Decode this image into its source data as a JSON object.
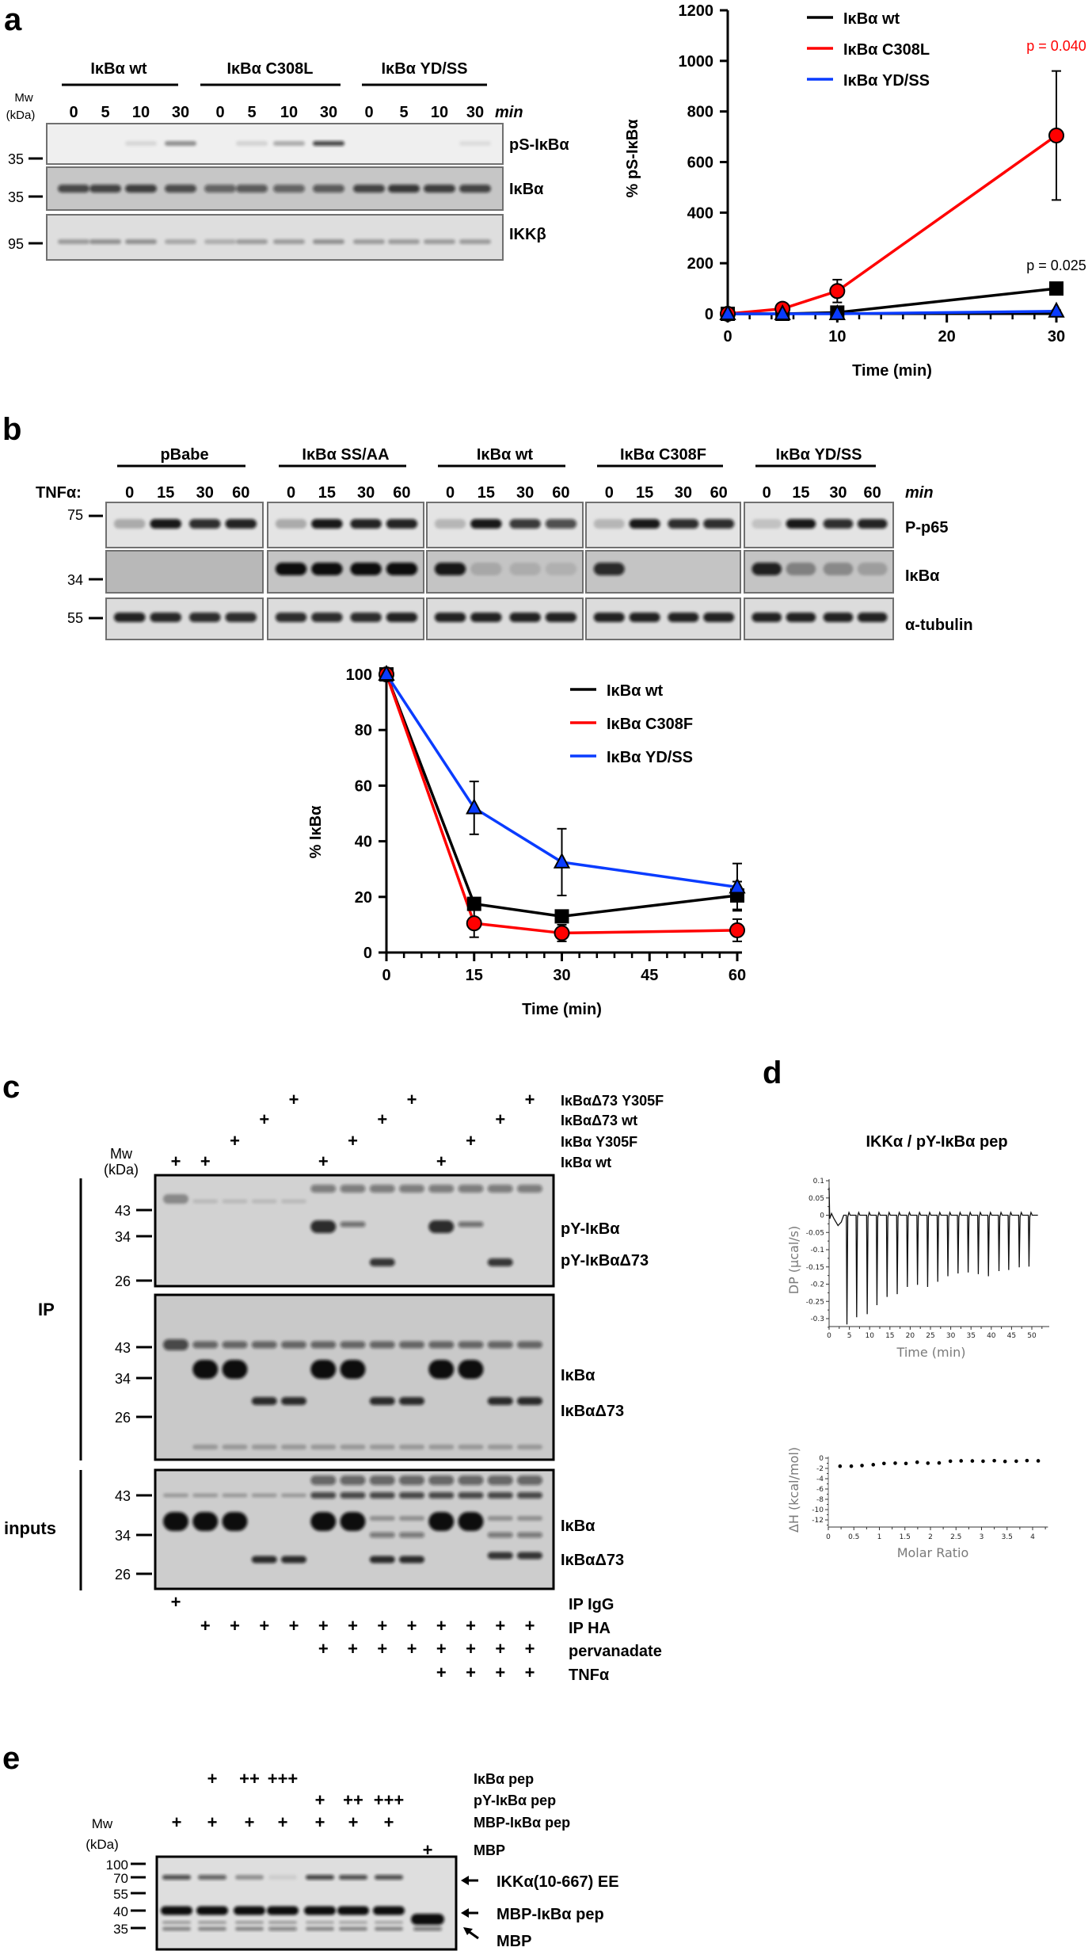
{
  "figure": {
    "panel_a": {
      "letter": "a",
      "groups": [
        "IκBα wt",
        "IκBα C308L",
        "IκBα YD/SS"
      ],
      "times": [
        "0",
        "5",
        "10",
        "30"
      ],
      "unit": "min",
      "mw_header": "Mw",
      "mw_unit": "(kDa)",
      "markers": [
        "35",
        "35",
        "95"
      ],
      "rows": [
        "pS-IκBα",
        "IκBα",
        "IKKβ"
      ]
    },
    "panel_b": {
      "letter": "b",
      "groups": [
        "pBabe",
        "IκBα SS/AA",
        "IκBα wt",
        "IκBα C308F",
        "IκBα YD/SS"
      ],
      "treatment": "TNFα:",
      "times": [
        "0",
        "15",
        "30",
        "60"
      ],
      "unit": "min",
      "markers": [
        "75",
        "34",
        "55"
      ],
      "rows": [
        "P-p65",
        "IκBα",
        "α-tubulin"
      ]
    },
    "panel_c": {
      "letter": "c",
      "mw_header": "Mw",
      "mw_unit": "(kDa)",
      "top_conditions": [
        {
          "label": "IκBαΔ73 Y305F",
          "marks": [
            "",
            "",
            "",
            "",
            "+",
            "",
            "",
            "",
            "+",
            "",
            "",
            "",
            "+"
          ]
        },
        {
          "label": "IκBαΔ73 wt",
          "marks": [
            "",
            "",
            "",
            "+",
            "",
            "",
            "",
            "+",
            "",
            "",
            "",
            "+",
            ""
          ]
        },
        {
          "label": "IκBα Y305F",
          "marks": [
            "",
            "",
            "+",
            "",
            "",
            "",
            "+",
            "",
            "",
            "",
            "+",
            "",
            ""
          ]
        },
        {
          "label": "IκBα wt",
          "marks": [
            "+",
            "+",
            "",
            "",
            "",
            "+",
            "",
            "",
            "",
            "+",
            "",
            "",
            ""
          ]
        }
      ],
      "blots": [
        {
          "markers": [
            "43",
            "34",
            "26"
          ],
          "labels": [
            "pY-IκBα",
            "pY-IκBαΔ73"
          ]
        },
        {
          "markers": [
            "43",
            "34",
            "26"
          ],
          "labels": [
            "IκBα",
            "IκBαΔ73"
          ]
        },
        {
          "markers": [
            "43",
            "34",
            "26"
          ],
          "labels": [
            "IκBα",
            "IκBαΔ73"
          ]
        }
      ],
      "brackets": [
        "IP",
        "inputs"
      ],
      "bottom_conditions": [
        {
          "label": "IP IgG",
          "marks": [
            "+",
            "",
            "",
            "",
            "",
            "",
            "",
            "",
            "",
            "",
            "",
            "",
            ""
          ]
        },
        {
          "label": "IP HA",
          "marks": [
            "",
            "+",
            "+",
            "+",
            "+",
            "+",
            "+",
            "+",
            "+",
            "+",
            "+",
            "+",
            "+"
          ]
        },
        {
          "label": "pervanadate",
          "marks": [
            "",
            "",
            "",
            "",
            "",
            "+",
            "+",
            "+",
            "+",
            "+",
            "+",
            "+",
            "+"
          ]
        },
        {
          "label": "TNFα",
          "marks": [
            "",
            "",
            "",
            "",
            "",
            "",
            "",
            "",
            "",
            "+",
            "+",
            "+",
            "+"
          ]
        }
      ]
    },
    "panel_d": {
      "letter": "d"
    },
    "panel_e": {
      "letter": "e",
      "mw_header": "Mw",
      "mw_unit": "(kDa)",
      "conditions": [
        {
          "label": "IκBα pep",
          "marks": [
            "",
            "+",
            "++",
            "+++",
            "",
            "",
            "",
            ""
          ]
        },
        {
          "label": "pY-IκBα pep",
          "marks": [
            "",
            "",
            "",
            "",
            "+",
            "++",
            "+++",
            ""
          ]
        },
        {
          "label": "MBP-IκBα pep",
          "marks": [
            "+",
            "+",
            "+",
            "+",
            "+",
            "+",
            "+",
            ""
          ]
        },
        {
          "label": "MBP",
          "marks": [
            "",
            "",
            "",
            "",
            "",
            "",
            "",
            "+"
          ]
        }
      ],
      "markers": [
        "100",
        "70",
        "55",
        "40",
        "35"
      ],
      "bands": [
        "IKKα(10-667) EE",
        "MBP-IκBα pep",
        "MBP"
      ]
    }
  },
  "chart_data": [
    {
      "id": "a",
      "type": "line",
      "xlabel": "Time (min)",
      "ylabel": "% pS-IκBα",
      "xlim": [
        0,
        30
      ],
      "ylim": [
        0,
        1200
      ],
      "xticks": [
        0,
        10,
        20,
        30
      ],
      "yticks": [
        0,
        200,
        400,
        600,
        800,
        1000,
        1200
      ],
      "legend": "top-center",
      "series": [
        {
          "name": "IκBα wt",
          "color": "#000000",
          "marker": "square",
          "x": [
            0,
            5,
            10,
            30
          ],
          "y": [
            0,
            0,
            5,
            100
          ],
          "err": [
            0,
            0,
            5,
            0
          ]
        },
        {
          "name": "IκBα C308L",
          "color": "#ff0000",
          "marker": "circle",
          "x": [
            0,
            5,
            10,
            30
          ],
          "y": [
            0,
            20,
            90,
            705
          ],
          "err": [
            0,
            0,
            45,
            255
          ]
        },
        {
          "name": "IκBα YD/SS",
          "color": "#0a3cff",
          "marker": "triangle",
          "x": [
            0,
            5,
            10,
            30
          ],
          "y": [
            0,
            0,
            0,
            10
          ],
          "err": [
            0,
            0,
            0,
            4
          ]
        }
      ],
      "annotations": [
        {
          "text": "p = 0.040",
          "x": 30,
          "y": 1040,
          "color": "#ff0000"
        },
        {
          "text": "p = 0.025",
          "x": 30,
          "y": 172,
          "color": "#000000"
        }
      ]
    },
    {
      "id": "b",
      "type": "line",
      "xlabel": "Time (min)",
      "ylabel": "% IκBα",
      "xlim": [
        0,
        60
      ],
      "ylim": [
        0,
        100
      ],
      "xticks": [
        0,
        15,
        30,
        45,
        60
      ],
      "yticks": [
        0,
        20,
        40,
        60,
        80,
        100
      ],
      "legend": "top-right",
      "series": [
        {
          "name": "IκBα wt",
          "color": "#000000",
          "marker": "square",
          "x": [
            0,
            15,
            30,
            60
          ],
          "y": [
            100,
            17.5,
            13,
            20.5
          ],
          "err": [
            0,
            2,
            2,
            5
          ]
        },
        {
          "name": "IκBα C308F",
          "color": "#ff0000",
          "marker": "circle",
          "x": [
            0,
            15,
            30,
            60
          ],
          "y": [
            100,
            10.5,
            7,
            8
          ],
          "err": [
            0,
            5,
            3,
            4
          ]
        },
        {
          "name": "IκBα YD/SS",
          "color": "#0a3cff",
          "marker": "triangle",
          "x": [
            0,
            15,
            30,
            60
          ],
          "y": [
            100,
            52,
            32.5,
            23.5
          ],
          "err": [
            0,
            9.5,
            12,
            8.5
          ]
        }
      ]
    },
    {
      "id": "d-top",
      "type": "line",
      "title": "IKKα / pY-IκBα pep",
      "xlabel": "Time (min)",
      "ylabel": "DP (µcal/s)",
      "xlim": [
        0,
        54.3
      ],
      "ylim": [
        -0.323,
        0.1
      ],
      "xticks": [
        0,
        5,
        10,
        15,
        20,
        25,
        30,
        35,
        40,
        45,
        50
      ],
      "yticks": [
        0.1,
        0.05,
        0,
        -0.05,
        -0.1,
        -0.15,
        -0.2,
        -0.25,
        -0.3
      ],
      "injections": {
        "time": [
          4.4,
          6.8,
          9.4,
          11.8,
          14.3,
          16.8,
          19.3,
          21.8,
          24.3,
          26.8,
          29.3,
          31.8,
          34.3,
          36.8,
          39.3,
          41.9,
          44.3,
          46.9,
          49.3
        ],
        "peak": [
          -0.317,
          -0.296,
          -0.287,
          -0.261,
          -0.237,
          -0.229,
          -0.208,
          -0.202,
          -0.208,
          -0.193,
          -0.177,
          -0.169,
          -0.166,
          -0.171,
          -0.177,
          -0.162,
          -0.159,
          -0.151,
          -0.149
        ]
      }
    },
    {
      "id": "d-bottom",
      "type": "scatter",
      "xlabel": "Molar Ratio",
      "ylabel": "ΔH (kcal/mol)",
      "xlim": [
        0,
        4.3
      ],
      "ylim": [
        -12.6,
        0.3
      ],
      "xticks": [
        0,
        0.5,
        1,
        1.5,
        2,
        2.5,
        3,
        3.5,
        4
      ],
      "yticks": [
        0,
        -2,
        -4,
        -6,
        -8,
        -10,
        -12
      ],
      "x": [
        0.23,
        0.45,
        0.66,
        0.88,
        1.09,
        1.31,
        1.52,
        1.74,
        1.95,
        2.17,
        2.39,
        2.6,
        2.82,
        3.03,
        3.25,
        3.46,
        3.68,
        3.89,
        4.11
      ],
      "y": [
        -1.57,
        -1.57,
        -1.45,
        -1.28,
        -1.04,
        -0.99,
        -1.04,
        -0.8,
        -0.99,
        -0.94,
        -0.6,
        -0.53,
        -0.55,
        -0.6,
        -0.5,
        -0.65,
        -0.6,
        -0.48,
        -0.53
      ]
    }
  ]
}
